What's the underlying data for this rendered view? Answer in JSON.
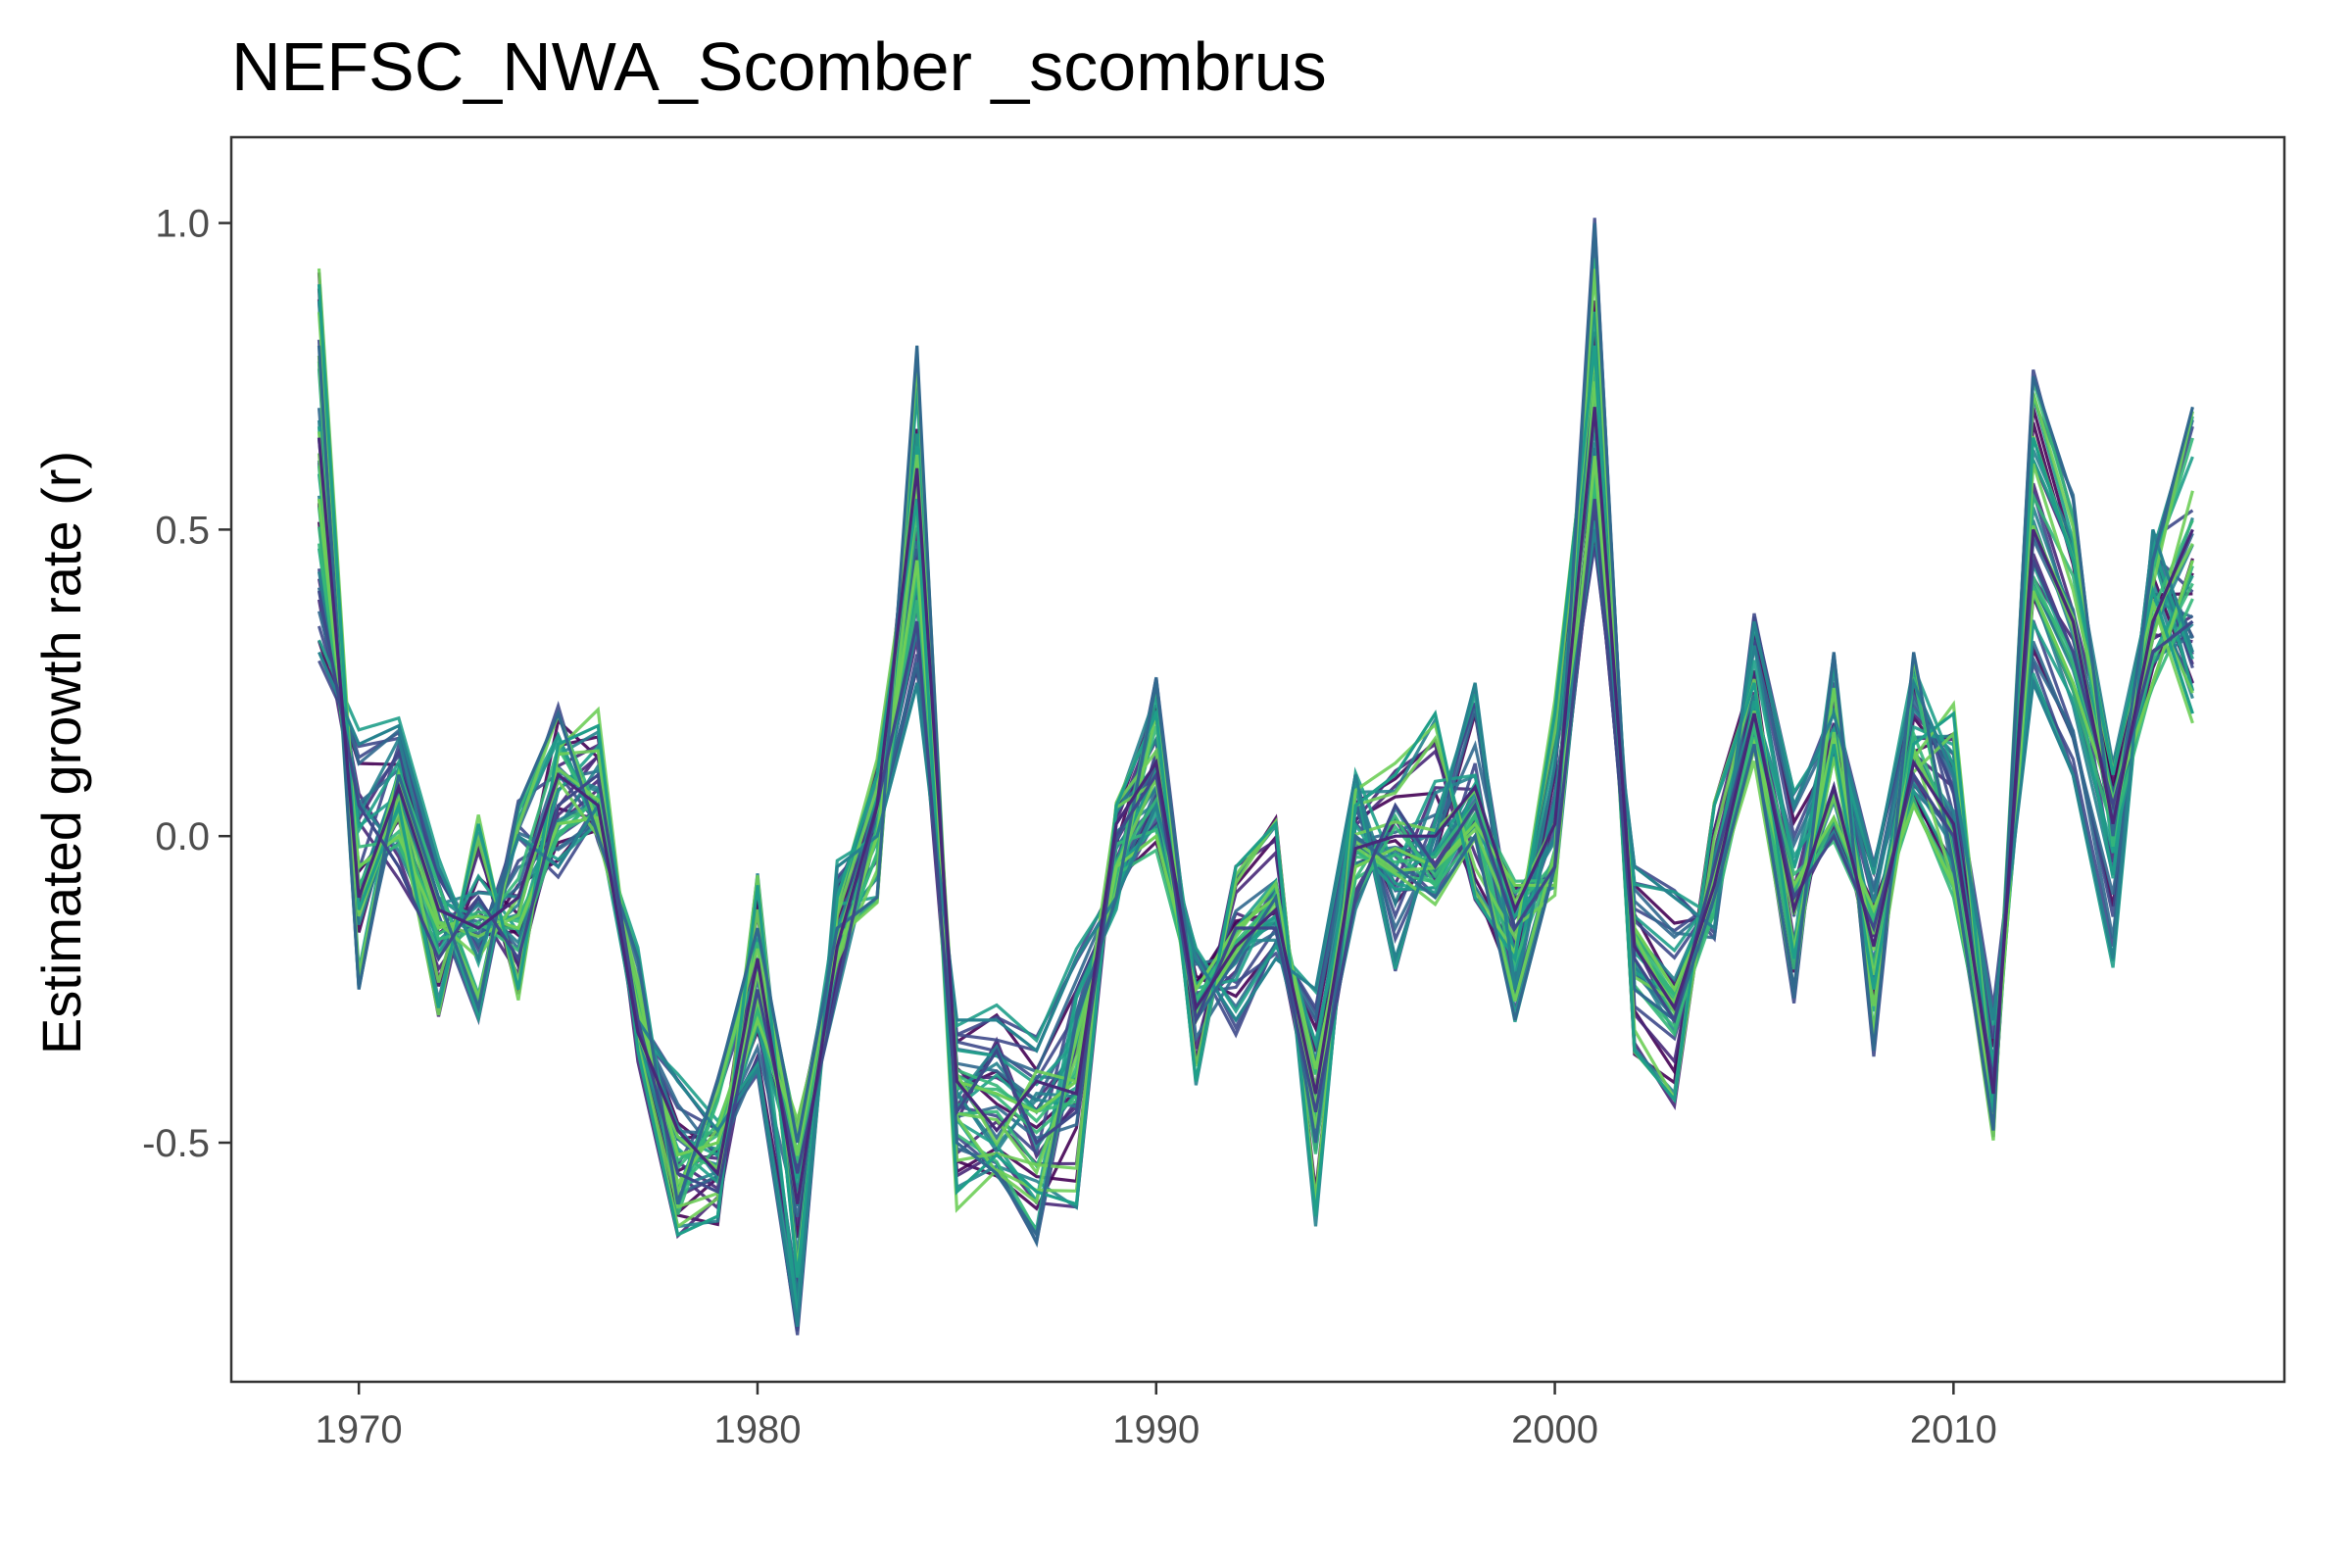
{
  "chart_data": {
    "type": "line",
    "title": "NEFSC_NWA_Scomber _scombrus",
    "xlabel": "",
    "ylabel": "Estimated growth rate (r)",
    "xlim": [
      1966.8,
      2018.3
    ],
    "ylim": [
      -0.89,
      1.14
    ],
    "x_ticks": [
      1970,
      1980,
      1990,
      2000,
      2010
    ],
    "y_ticks": [
      -0.5,
      0.0,
      0.5,
      1.0
    ],
    "x_tick_labels": [
      "1970",
      "1980",
      "1990",
      "2000",
      "2010"
    ],
    "y_tick_labels": [
      "-0.5",
      "0.0",
      "0.5",
      "1.0"
    ],
    "grid": false,
    "legend": "none",
    "colormap": [
      "#440154",
      "#482878",
      "#3e4989",
      "#31688e",
      "#26828e",
      "#1f9e89",
      "#35b779",
      "#6ece58"
    ],
    "ensemble_size": 40,
    "x": [
      1969,
      1970,
      1971,
      1972,
      1973,
      1974,
      1975,
      1976,
      1977,
      1978,
      1979,
      1980,
      1981,
      1982,
      1983,
      1984,
      1985,
      1986,
      1987,
      1988,
      1989,
      1990,
      1991,
      1992,
      1993,
      1994,
      1995,
      1996,
      1997,
      1998,
      1999,
      2000,
      2001,
      2002,
      2003,
      2004,
      2005,
      2006,
      2007,
      2008,
      2009,
      2010,
      2011,
      2012,
      2013,
      2014,
      2015,
      2016
    ],
    "series": [
      {
        "name": "",
        "values": [
          0.55,
          -0.05,
          0.0,
          -0.15,
          -0.13,
          -0.15,
          0.02,
          0.03,
          -0.28,
          -0.52,
          -0.5,
          -0.3,
          -0.48,
          -0.2,
          0.0,
          0.45,
          -0.4,
          -0.42,
          -0.45,
          -0.4,
          -0.05,
          0.0,
          -0.25,
          -0.15,
          -0.1,
          -0.38,
          -0.05,
          -0.02,
          -0.05,
          0.02,
          -0.08,
          -0.08,
          0.62,
          -0.15,
          -0.25,
          -0.1,
          0.15,
          -0.08,
          0.03,
          -0.12,
          0.05,
          -0.08,
          -0.43,
          0.4,
          0.25,
          0.05,
          0.25,
          0.45
        ]
      },
      {
        "name": "",
        "values": [
          0.9,
          -0.12,
          0.05,
          -0.28,
          0.02,
          -0.25,
          0.15,
          0.18,
          -0.35,
          -0.65,
          -0.62,
          -0.08,
          -0.72,
          -0.1,
          0.1,
          0.55,
          -0.58,
          -0.52,
          -0.58,
          -0.6,
          0.05,
          0.2,
          -0.4,
          -0.05,
          0.02,
          -0.62,
          0.05,
          0.1,
          0.2,
          -0.1,
          -0.2,
          0.2,
          0.8,
          -0.35,
          -0.43,
          0.05,
          0.25,
          -0.2,
          0.15,
          -0.25,
          0.15,
          0.2,
          -0.45,
          0.65,
          0.45,
          0.1,
          0.4,
          0.2
        ]
      },
      {
        "name": "",
        "values": [
          0.3,
          0.15,
          0.18,
          -0.05,
          -0.2,
          0.0,
          -0.05,
          0.05,
          -0.3,
          -0.4,
          -0.48,
          -0.38,
          -0.8,
          -0.05,
          0.0,
          0.25,
          -0.3,
          -0.3,
          -0.35,
          -0.2,
          -0.1,
          0.05,
          -0.2,
          -0.3,
          -0.2,
          -0.25,
          0.1,
          -0.2,
          0.0,
          0.25,
          -0.25,
          0.05,
          0.5,
          -0.05,
          -0.1,
          -0.15,
          0.35,
          0.05,
          0.2,
          -0.05,
          0.25,
          0.1,
          -0.3,
          0.25,
          0.1,
          -0.2,
          0.5,
          0.3
        ]
      },
      {
        "name": "",
        "values": [
          0.8,
          -0.25,
          0.1,
          -0.1,
          -0.28,
          0.05,
          0.2,
          0.0,
          -0.2,
          -0.6,
          -0.4,
          -0.15,
          -0.5,
          -0.15,
          -0.1,
          0.8,
          -0.5,
          -0.55,
          -0.65,
          -0.3,
          -0.1,
          0.25,
          -0.3,
          -0.2,
          -0.1,
          -0.5,
          0.0,
          -0.05,
          -0.1,
          0.0,
          -0.3,
          -0.05,
          1.0,
          -0.25,
          -0.3,
          -0.1,
          0.15,
          -0.25,
          0.3,
          -0.35,
          0.3,
          -0.05,
          -0.48,
          0.75,
          0.55,
          0.0,
          0.45,
          0.7
        ]
      },
      {
        "name": "",
        "values": [
          0.4,
          0.05,
          -0.05,
          -0.2,
          -0.1,
          -0.2,
          0.05,
          0.1,
          -0.3,
          -0.55,
          -0.58,
          -0.25,
          -0.55,
          -0.25,
          0.05,
          0.35,
          -0.45,
          -0.35,
          -0.5,
          -0.45,
          0.0,
          0.1,
          -0.3,
          -0.15,
          -0.15,
          -0.45,
          -0.1,
          0.05,
          -0.05,
          0.05,
          -0.15,
          -0.05,
          0.55,
          -0.2,
          -0.3,
          -0.05,
          0.2,
          -0.1,
          0.0,
          -0.15,
          0.1,
          0.0,
          -0.4,
          0.45,
          0.3,
          0.05,
          0.3,
          0.35
        ]
      },
      {
        "name": "",
        "values": [
          0.65,
          -0.1,
          0.08,
          -0.12,
          -0.15,
          -0.1,
          0.1,
          0.05,
          -0.32,
          -0.48,
          -0.55,
          -0.2,
          -0.6,
          -0.18,
          0.05,
          0.6,
          -0.4,
          -0.48,
          -0.4,
          -0.42,
          0.02,
          0.12,
          -0.28,
          -0.18,
          -0.12,
          -0.42,
          -0.02,
          0.0,
          0.0,
          0.08,
          -0.12,
          0.02,
          0.7,
          -0.18,
          -0.28,
          -0.08,
          0.2,
          -0.12,
          0.08,
          -0.18,
          0.12,
          0.02,
          -0.42,
          0.5,
          0.35,
          0.02,
          0.35,
          0.5
        ]
      }
    ]
  }
}
